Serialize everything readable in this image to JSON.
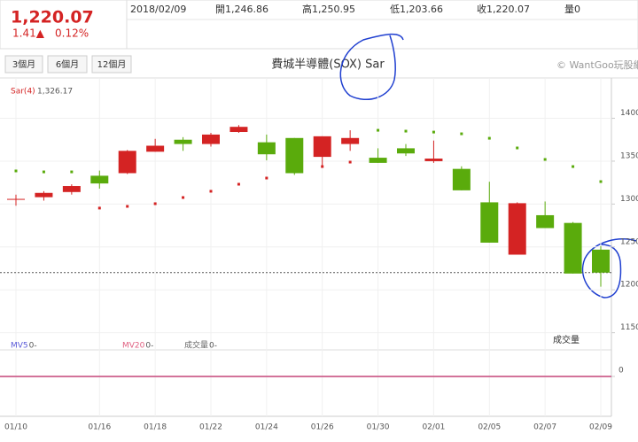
{
  "header": {
    "price": "1,220.07",
    "change": "1.41▲",
    "change_pct": "0.12%",
    "date": "2018/02/09",
    "quote": [
      "開1,246.86",
      "高1,250.95",
      "低1,203.66",
      "收1,220.07",
      "量0"
    ]
  },
  "range_buttons": [
    "3個月",
    "6個月",
    "12個月"
  ],
  "watermark": "© WantGoo玩股網",
  "chart_data": [
    {
      "type": "candlestick",
      "title": "費城半導體(SOX) Sar",
      "categories": [
        "01/10",
        null,
        null,
        "01/16",
        null,
        "01/18",
        null,
        "01/22",
        null,
        "01/24",
        null,
        "01/26",
        null,
        "01/30",
        null,
        "02/01",
        null,
        "02/05",
        null,
        "02/07",
        null,
        "02/09"
      ],
      "open": [
        1305,
        1308,
        1314,
        1333,
        1336,
        1361,
        1375,
        1370,
        1384,
        1372,
        1377,
        1355,
        1370,
        1354,
        1365,
        1350,
        1341,
        1302,
        1241,
        1287,
        1278,
        1246.86
      ],
      "high": [
        1311,
        1315,
        1323,
        1339,
        1363,
        1376,
        1378,
        1383,
        1392,
        1381,
        1377,
        1379,
        1386,
        1365,
        1370,
        1374,
        1344,
        1326,
        1302,
        1303,
        1279,
        1250.95
      ],
      "low": [
        1298,
        1304,
        1311,
        1318,
        1335,
        1361,
        1362,
        1367,
        1383,
        1351,
        1334,
        1344,
        1362,
        1348,
        1356,
        1348,
        1316,
        1255,
        1241,
        1272,
        1219,
        1203.66
      ],
      "close": [
        1306,
        1313,
        1321,
        1324,
        1362,
        1368,
        1370,
        1381,
        1390,
        1358,
        1336,
        1379,
        1377,
        1348,
        1359,
        1353,
        1316,
        1255,
        1301,
        1272,
        1219,
        1220.07
      ],
      "up_color": "#d42323",
      "down_color": "#5aab0c",
      "sar": {
        "name": "Sar(4)",
        "value_label": "1,326.17",
        "values": [
          1338.6,
          1337.5,
          1337.5,
          1295.3,
          1297.3,
          1300.4,
          1307.6,
          1314.9,
          1323.1,
          1330.3,
          1337.5,
          1343.7,
          1348.9,
          1386,
          1385,
          1383.9,
          1381.9,
          1376.7,
          1365.4,
          1352,
          1343.7,
          1326.17
        ]
      },
      "ylim": [
        1130,
        1447
      ],
      "yticks": [
        1150,
        1200,
        1250,
        1300,
        1350,
        1400
      ],
      "grid": true
    },
    {
      "type": "volume",
      "label": "成交量",
      "series": [
        {
          "name": "MV5",
          "color": "#5a5ad8",
          "value_label": "0-",
          "values": [
            0,
            0,
            0,
            0,
            0,
            0,
            0,
            0,
            0,
            0,
            0,
            0,
            0,
            0,
            0,
            0,
            0,
            0,
            0,
            0,
            0,
            0
          ]
        },
        {
          "name": "MV20",
          "color": "#e06080",
          "value_label": "0-",
          "values": [
            0,
            0,
            0,
            0,
            0,
            0,
            0,
            0,
            0,
            0,
            0,
            0,
            0,
            0,
            0,
            0,
            0,
            0,
            0,
            0,
            0,
            0
          ]
        },
        {
          "name": "成交量",
          "color": "#666666",
          "value_label": "0-",
          "values": [
            0,
            0,
            0,
            0,
            0,
            0,
            0,
            0,
            0,
            0,
            0,
            0,
            0,
            0,
            0,
            0,
            0,
            0,
            0,
            0,
            0,
            0
          ]
        }
      ],
      "ylim": [
        -1.5,
        1
      ],
      "yticks": [
        0
      ]
    }
  ]
}
